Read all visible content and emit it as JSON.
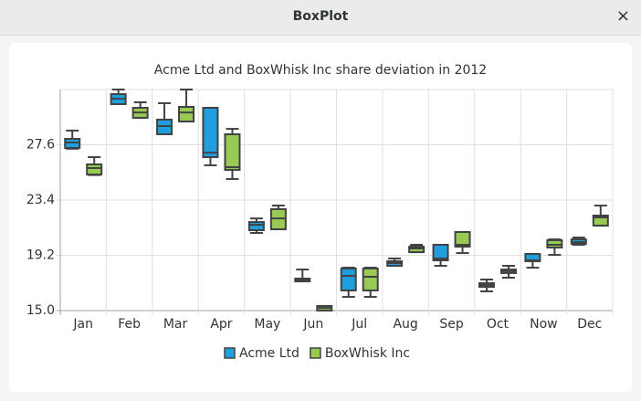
{
  "window": {
    "title": "BoxPlot",
    "close": "×"
  },
  "chart_data": {
    "type": "box",
    "title": "Acme Ltd and BoxWhisk Inc share deviation in 2012",
    "categories": [
      "Jan",
      "Feb",
      "Mar",
      "Apr",
      "May",
      "Jun",
      "Jul",
      "Aug",
      "Sep",
      "Oct",
      "Now",
      "Dec"
    ],
    "series": [
      {
        "name": "Acme Ltd",
        "color": "#209fdf",
        "values": [
          [
            27.3,
            27.36,
            27.77,
            28.05,
            28.68
          ],
          [
            30.69,
            30.69,
            31.1,
            31.45,
            31.8
          ],
          [
            28.4,
            28.4,
            29.02,
            29.51,
            30.76
          ],
          [
            26.04,
            26.66,
            27.0,
            30.41,
            30.41
          ],
          [
            20.9,
            21.11,
            21.52,
            21.73,
            22.0
          ],
          [
            17.22,
            17.22,
            17.3,
            17.43,
            18.12
          ],
          [
            16.04,
            16.53,
            17.64,
            18.2,
            18.26
          ],
          [
            18.4,
            18.4,
            18.61,
            18.75,
            18.96
          ],
          [
            18.4,
            18.82,
            18.96,
            20.0,
            20.0
          ],
          [
            16.46,
            16.8,
            16.94,
            17.08,
            17.36
          ],
          [
            18.26,
            18.75,
            18.82,
            19.3,
            19.3
          ],
          [
            20.0,
            20.07,
            20.2,
            20.41,
            20.55
          ]
        ]
      },
      {
        "name": "BoxWhisk Inc",
        "color": "#99ca53",
        "values": [
          [
            25.3,
            25.34,
            25.83,
            26.11,
            26.66
          ],
          [
            29.65,
            29.65,
            30.06,
            30.41,
            30.83
          ],
          [
            29.37,
            29.37,
            30.06,
            30.48,
            31.8
          ],
          [
            25.0,
            25.69,
            25.9,
            28.4,
            28.81
          ],
          [
            21.18,
            21.18,
            22.0,
            22.71,
            22.98
          ],
          [
            15.0,
            15.0,
            15.2,
            15.35,
            15.35
          ],
          [
            16.04,
            16.53,
            17.57,
            18.2,
            18.26
          ],
          [
            19.44,
            19.44,
            19.72,
            19.86,
            20.0
          ],
          [
            19.37,
            19.86,
            20.0,
            20.97,
            20.97
          ],
          [
            17.5,
            17.85,
            17.99,
            18.12,
            18.4
          ],
          [
            19.23,
            19.79,
            20.0,
            20.35,
            20.41
          ],
          [
            21.46,
            21.46,
            22.08,
            22.22,
            22.98
          ]
        ]
      }
    ],
    "ylim": [
      15,
      31.8
    ],
    "yticks": [
      {
        "value": 15,
        "label": "15.0"
      },
      19.2,
      23.4,
      27.6
    ],
    "grid": true
  }
}
